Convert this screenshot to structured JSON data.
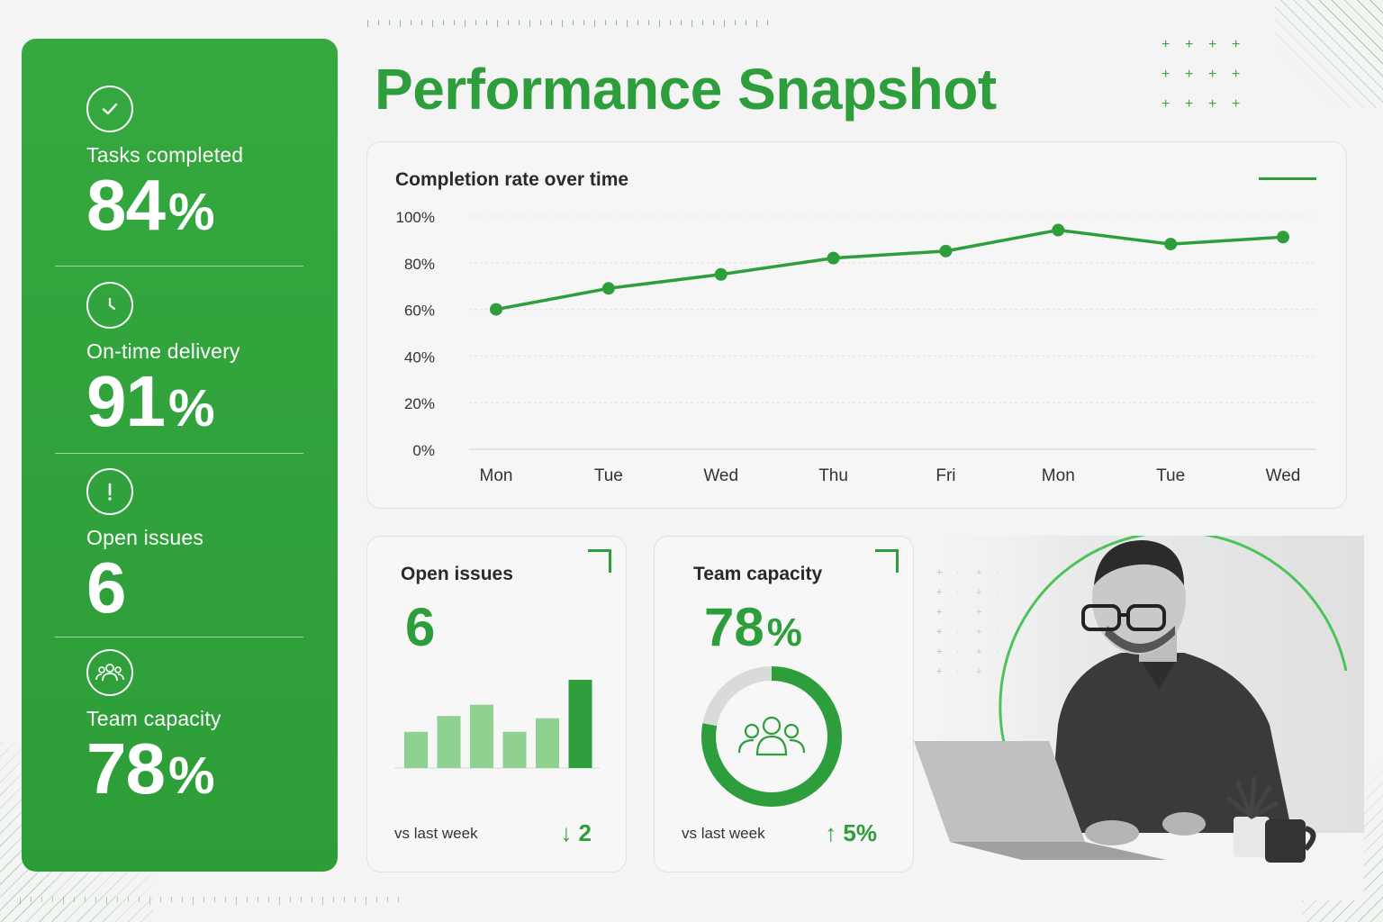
{
  "title": "Performance Snapshot",
  "colors": {
    "accent": "#2e9e3c",
    "accent_light": "#8fd18f",
    "panel": "#31a43c"
  },
  "sidebar": {
    "kpis": [
      {
        "icon": "check-circle-icon",
        "label": "Tasks completed",
        "value": "84",
        "unit": "%"
      },
      {
        "icon": "clock-icon",
        "label": "On-time delivery",
        "value": "91",
        "unit": "%"
      },
      {
        "icon": "alert-circle-icon",
        "label": "Open issues",
        "value": "6",
        "unit": ""
      },
      {
        "icon": "team-icon",
        "label": "Team capacity",
        "value": "78",
        "unit": "%"
      }
    ]
  },
  "chart_data": [
    {
      "type": "line",
      "title": "Completion rate over time",
      "categories": [
        "Mon",
        "Tue",
        "Wed",
        "Thu",
        "Fri",
        "Mon",
        "Tue",
        "Wed"
      ],
      "series": [
        {
          "values": [
            60,
            69,
            75,
            82,
            85,
            94,
            88,
            91
          ]
        }
      ],
      "yticks": [
        "0%",
        "20%",
        "40%",
        "60%",
        "80%",
        "100%"
      ],
      "ylim": [
        0,
        100
      ],
      "grid": true
    },
    {
      "type": "bar",
      "values": [
        16,
        23,
        28,
        16,
        22,
        39
      ],
      "highlight_last": true
    }
  ],
  "cards": {
    "issues": {
      "title": "Open issues",
      "value": "6",
      "foot_label": "vs last week",
      "change": "↓ 2"
    },
    "capacity": {
      "title": "Team capacity",
      "value": "78",
      "unit": "%",
      "progress": 0.78,
      "foot_label": "vs last week",
      "change": "↑ 5%"
    }
  }
}
